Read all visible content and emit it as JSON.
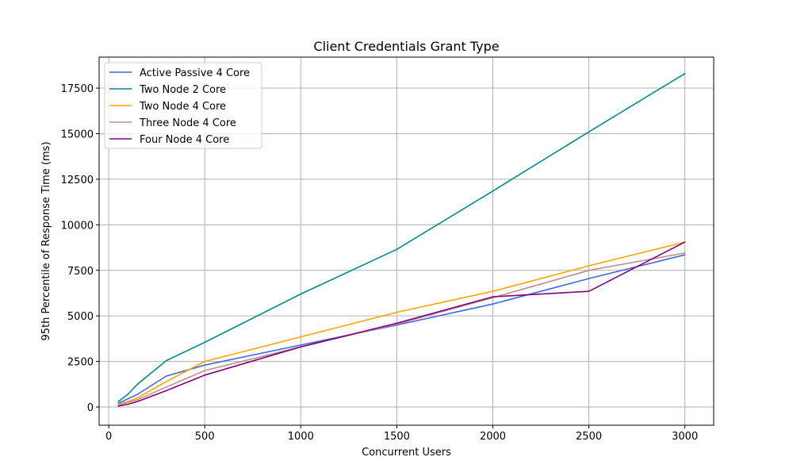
{
  "chart_data": {
    "type": "line",
    "title": "Client Credentials Grant Type",
    "xlabel": "Concurrent Users",
    "ylabel": "95th Percentile of Response Time (ms)",
    "xlim": [
      -50,
      3150
    ],
    "ylim": [
      -1000,
      19200
    ],
    "xticks": [
      0,
      500,
      1000,
      1500,
      2000,
      2500,
      3000
    ],
    "yticks": [
      0,
      2500,
      5000,
      7500,
      10000,
      12500,
      15000,
      17500
    ],
    "grid": true,
    "legend_position": "top-left",
    "series": [
      {
        "name": "Active Passive 4 Core",
        "color": "#4169e1",
        "x": [
          50,
          100,
          150,
          300,
          500,
          1000,
          1500,
          2000,
          2500,
          3000
        ],
        "y": [
          200,
          450,
          700,
          1700,
          2300,
          3400,
          4500,
          5650,
          7050,
          8350
        ]
      },
      {
        "name": "Two Node 2 Core",
        "color": "#008b8b",
        "x": [
          50,
          100,
          150,
          300,
          500,
          1000,
          1500,
          2000,
          2500,
          3000
        ],
        "y": [
          300,
          700,
          1250,
          2550,
          3550,
          6200,
          8650,
          11850,
          15100,
          18300
        ]
      },
      {
        "name": "Two Node 4 Core",
        "color": "#ffa500",
        "x": [
          50,
          100,
          150,
          300,
          500,
          1000,
          1500,
          2000,
          2500,
          3000
        ],
        "y": [
          150,
          300,
          500,
          1400,
          2500,
          3850,
          5200,
          6350,
          7750,
          9050
        ]
      },
      {
        "name": "Three Node 4 Core",
        "color": "#bc8f8f",
        "x": [
          50,
          100,
          150,
          300,
          500,
          1000,
          1500,
          2000,
          2500,
          3000
        ],
        "y": [
          100,
          250,
          400,
          1100,
          2000,
          3300,
          4550,
          6000,
          7500,
          8450
        ]
      },
      {
        "name": "Four Node 4 Core",
        "color": "#800080",
        "x": [
          50,
          100,
          150,
          300,
          500,
          1000,
          1500,
          2000,
          2500,
          3000
        ],
        "y": [
          50,
          150,
          300,
          900,
          1750,
          3300,
          4600,
          6050,
          6350,
          9050
        ]
      }
    ]
  }
}
